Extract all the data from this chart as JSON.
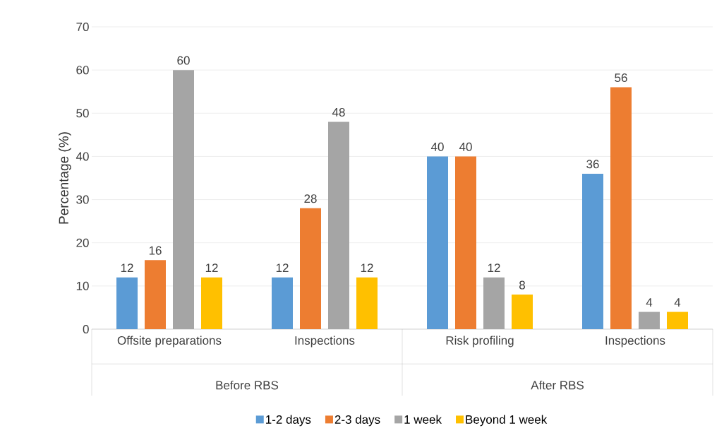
{
  "chart_data": {
    "type": "bar",
    "ylabel": "Percentage (%)",
    "categories": [
      "Offsite preparations",
      "Inspections",
      "Risk profiling",
      "Inspections"
    ],
    "annotations": [
      "Before RBS",
      "After RBS"
    ],
    "series": [
      {
        "name": "1-2 days",
        "color": "#5b9bd5",
        "values": [
          12,
          12,
          40,
          36
        ]
      },
      {
        "name": "2-3 days",
        "color": "#ed7d31",
        "values": [
          16,
          28,
          40,
          56
        ]
      },
      {
        "name": "1 week",
        "color": "#a5a5a5",
        "values": [
          60,
          48,
          12,
          4
        ]
      },
      {
        "name": "Beyond 1 week",
        "color": "#ffc000",
        "values": [
          12,
          12,
          8,
          4
        ]
      }
    ],
    "ylim": [
      0,
      70
    ],
    "yticks": [
      0,
      10,
      20,
      30,
      40,
      50,
      60,
      70
    ],
    "grid": "y",
    "legend": "bottom",
    "data_labels": true
  }
}
